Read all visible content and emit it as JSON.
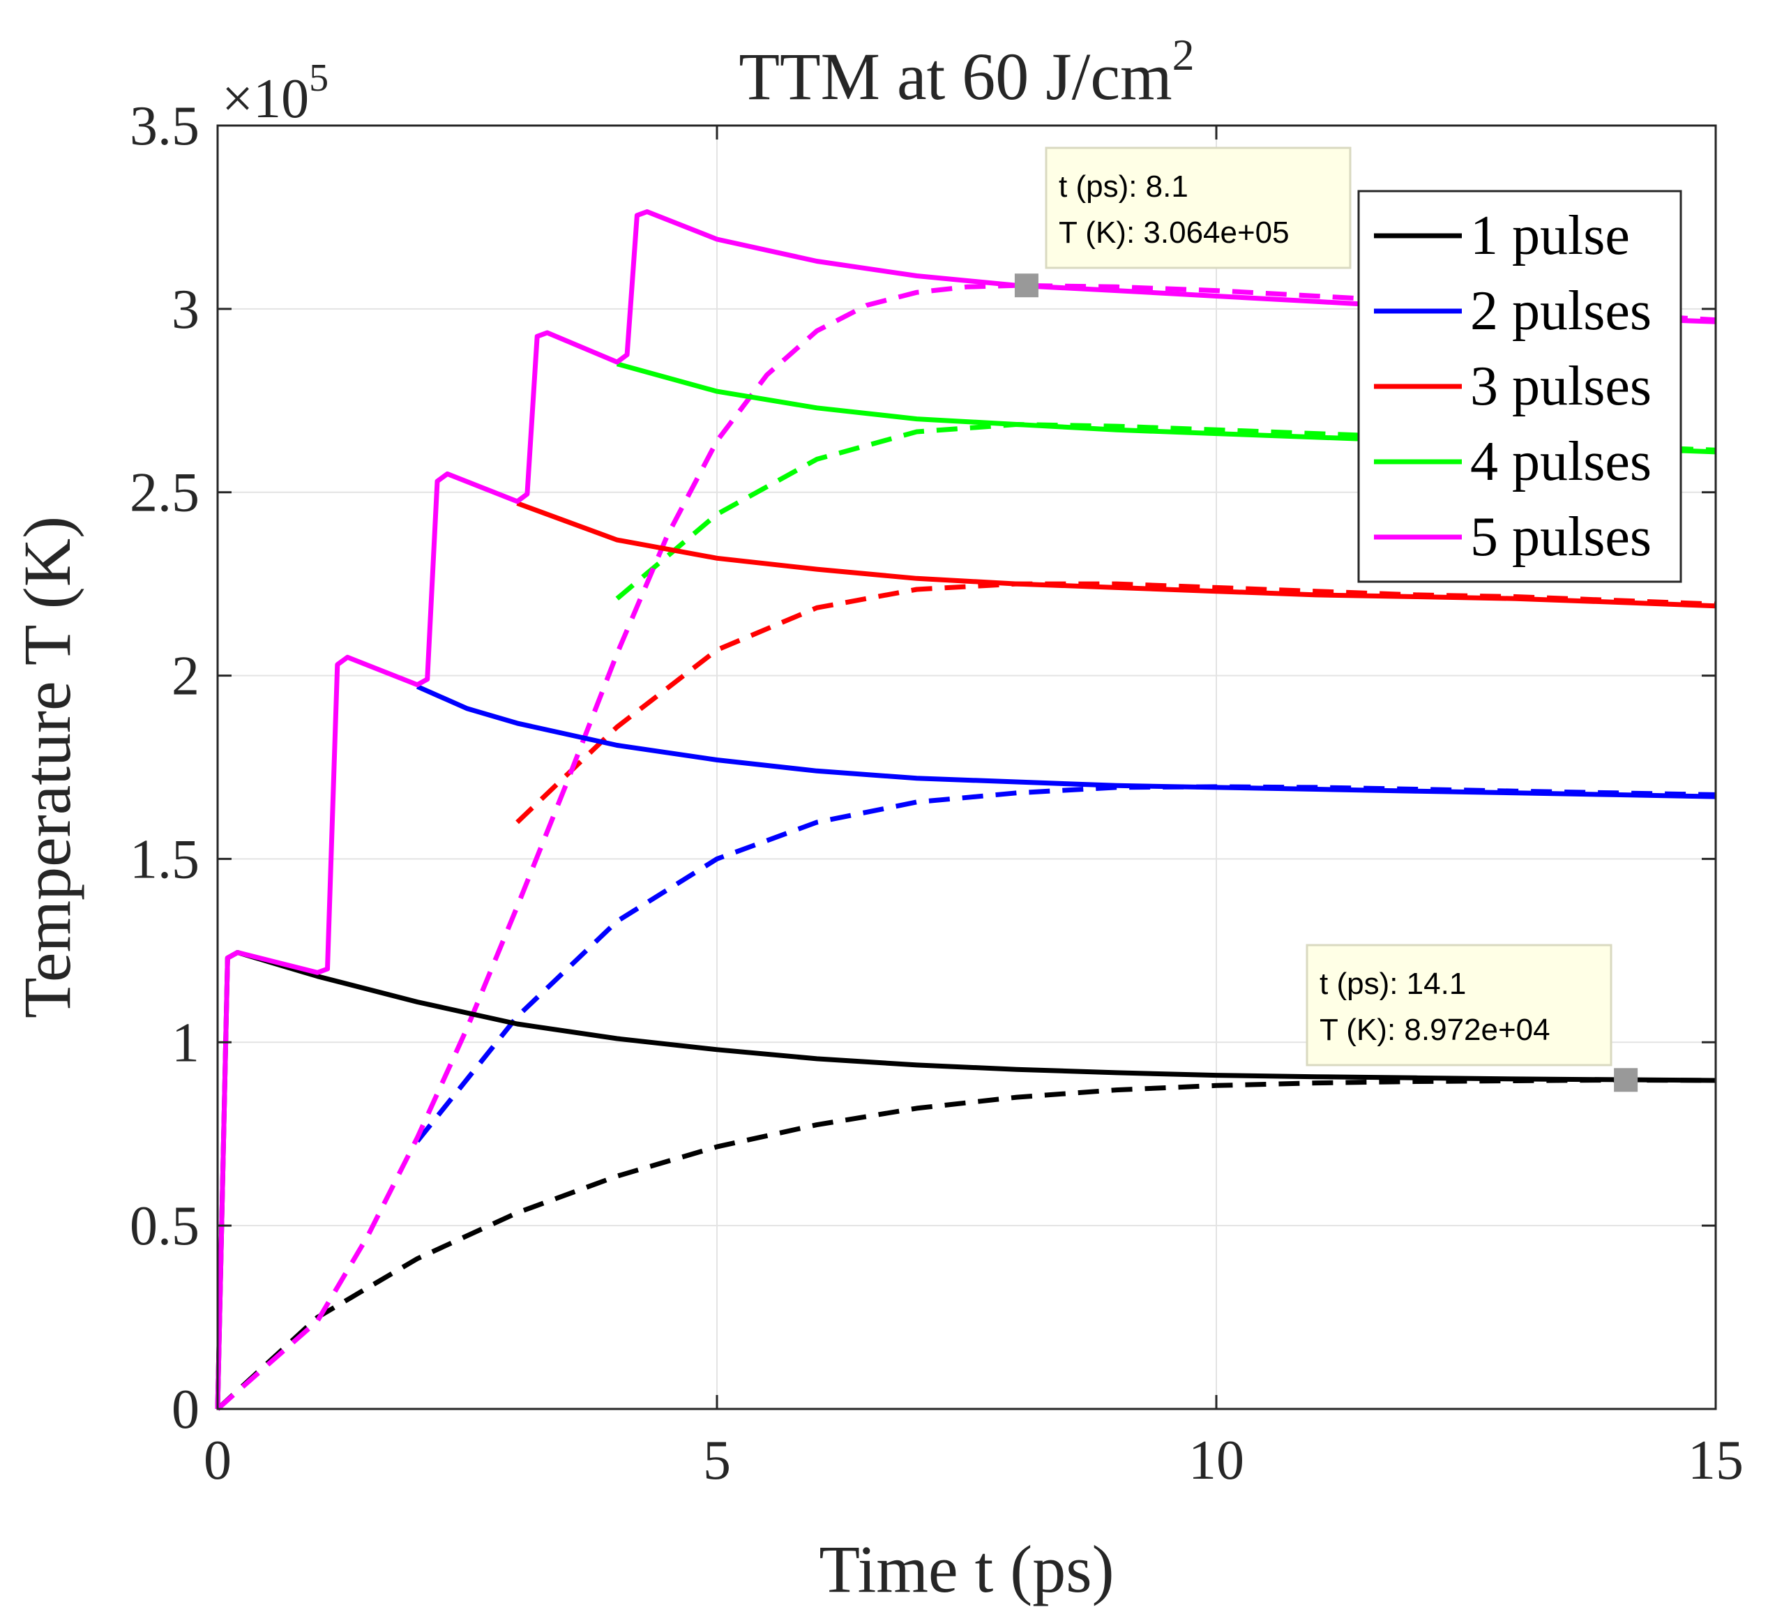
{
  "chart_data": {
    "type": "line",
    "title": "TTM at 60 J/cm",
    "title_superscript": "2",
    "xlabel": "Time t (ps)",
    "ylabel": "Temperature T (K)",
    "xlim": [
      0,
      15
    ],
    "ylim": [
      0,
      350000
    ],
    "xticks": [
      0,
      5,
      10,
      15
    ],
    "yticks": [
      0,
      50000,
      100000,
      150000,
      200000,
      250000,
      300000,
      350000
    ],
    "xtick_labels": [
      "0",
      "5",
      "10",
      "15"
    ],
    "ytick_labels": [
      "0",
      "0.5",
      "1",
      "1.5",
      "2",
      "2.5",
      "3",
      "3.5"
    ],
    "y_exponent_prefix": "×10",
    "y_exponent": "5",
    "grid": true,
    "legend_position": "top-right",
    "series": [
      {
        "name": "1 pulse",
        "color": "#000000",
        "solid": [
          [
            0,
            0
          ],
          [
            0.1,
            123000
          ],
          [
            0.2,
            124500
          ],
          [
            1,
            118000
          ],
          [
            2,
            111000
          ],
          [
            3,
            105000
          ],
          [
            4,
            101000
          ],
          [
            5,
            98000
          ],
          [
            6,
            95500
          ],
          [
            7,
            93800
          ],
          [
            8,
            92600
          ],
          [
            9,
            91700
          ],
          [
            10,
            91000
          ],
          [
            11,
            90600
          ],
          [
            12,
            90300
          ],
          [
            13,
            90000
          ],
          [
            14,
            89800
          ],
          [
            15,
            89600
          ]
        ],
        "dashed": [
          [
            0,
            0
          ],
          [
            1,
            25000
          ],
          [
            2,
            41000
          ],
          [
            3,
            53500
          ],
          [
            4,
            63500
          ],
          [
            5,
            71500
          ],
          [
            6,
            77500
          ],
          [
            7,
            82000
          ],
          [
            8,
            85000
          ],
          [
            9,
            87000
          ],
          [
            10,
            88200
          ],
          [
            11,
            88900
          ],
          [
            12,
            89300
          ],
          [
            13,
            89500
          ],
          [
            14,
            89700
          ],
          [
            15,
            89600
          ]
        ]
      },
      {
        "name": "2 pulses",
        "color": "#0000ff",
        "solid": [
          [
            2,
            197000
          ],
          [
            2.5,
            191000
          ],
          [
            3,
            187000
          ],
          [
            4,
            181000
          ],
          [
            5,
            177000
          ],
          [
            6,
            174000
          ],
          [
            7,
            172000
          ],
          [
            8,
            171000
          ],
          [
            9,
            170000
          ],
          [
            10,
            169500
          ],
          [
            11,
            169000
          ],
          [
            12,
            168500
          ],
          [
            13,
            168000
          ],
          [
            14,
            167500
          ],
          [
            15,
            167000
          ]
        ],
        "dashed": [
          [
            2,
            73000
          ],
          [
            3,
            107000
          ],
          [
            4,
            133000
          ],
          [
            5,
            150000
          ],
          [
            6,
            160000
          ],
          [
            7,
            165500
          ],
          [
            8,
            168000
          ],
          [
            9,
            169500
          ],
          [
            10,
            169700
          ],
          [
            11,
            169500
          ],
          [
            12,
            169000
          ],
          [
            13,
            168500
          ],
          [
            14,
            168000
          ],
          [
            15,
            167500
          ]
        ]
      },
      {
        "name": "3 pulses",
        "color": "#ff0000",
        "solid": [
          [
            3,
            247000
          ],
          [
            3.5,
            242000
          ],
          [
            4,
            237000
          ],
          [
            5,
            232000
          ],
          [
            6,
            229000
          ],
          [
            7,
            226500
          ],
          [
            8,
            225000
          ],
          [
            9,
            224000
          ],
          [
            10,
            223000
          ],
          [
            11,
            222000
          ],
          [
            12,
            221500
          ],
          [
            13,
            221000
          ],
          [
            14,
            220000
          ],
          [
            15,
            219000
          ]
        ],
        "dashed": [
          [
            3,
            160000
          ],
          [
            3.5,
            173000
          ],
          [
            4,
            186000
          ],
          [
            5,
            207000
          ],
          [
            6,
            218500
          ],
          [
            7,
            223500
          ],
          [
            8,
            225000
          ],
          [
            9,
            225000
          ],
          [
            10,
            224000
          ],
          [
            11,
            223000
          ],
          [
            12,
            222000
          ],
          [
            13,
            221500
          ],
          [
            14,
            220500
          ],
          [
            15,
            219500
          ]
        ]
      },
      {
        "name": "4 pulses",
        "color": "#00ff00",
        "solid": [
          [
            4,
            285000
          ],
          [
            5,
            277500
          ],
          [
            6,
            273000
          ],
          [
            7,
            270000
          ],
          [
            8,
            268500
          ],
          [
            9,
            267000
          ],
          [
            10,
            266000
          ],
          [
            11,
            265000
          ],
          [
            12,
            264000
          ],
          [
            13,
            263000
          ],
          [
            14,
            262000
          ],
          [
            15,
            261000
          ]
        ],
        "dashed": [
          [
            4,
            221000
          ],
          [
            5,
            244000
          ],
          [
            6,
            259000
          ],
          [
            7,
            266500
          ],
          [
            8,
            268500
          ],
          [
            9,
            268000
          ],
          [
            10,
            267000
          ],
          [
            11,
            266000
          ],
          [
            12,
            265000
          ],
          [
            13,
            264000
          ],
          [
            14,
            262500
          ],
          [
            15,
            261500
          ]
        ]
      },
      {
        "name": "5 pulses",
        "color": "#ff00ff",
        "solid": [
          [
            0,
            0
          ],
          [
            0.1,
            123000
          ],
          [
            0.2,
            124500
          ],
          [
            1,
            119000
          ],
          [
            1.1,
            120000
          ],
          [
            1.2,
            203000
          ],
          [
            1.3,
            205000
          ],
          [
            2,
            197500
          ],
          [
            2.1,
            199000
          ],
          [
            2.2,
            253000
          ],
          [
            2.3,
            255000
          ],
          [
            3,
            247500
          ],
          [
            3.1,
            249500
          ],
          [
            3.2,
            292500
          ],
          [
            3.3,
            293500
          ],
          [
            4,
            285500
          ],
          [
            4.1,
            287500
          ],
          [
            4.2,
            325500
          ],
          [
            4.3,
            326500
          ],
          [
            5,
            319000
          ],
          [
            6,
            313000
          ],
          [
            7,
            309000
          ],
          [
            8,
            306400
          ],
          [
            9,
            305000
          ],
          [
            10,
            303500
          ],
          [
            11,
            302000
          ],
          [
            12,
            300500
          ],
          [
            13,
            299000
          ],
          [
            14,
            297500
          ],
          [
            15,
            296500
          ]
        ],
        "dashed": [
          [
            0,
            0
          ],
          [
            1,
            24000
          ],
          [
            1.5,
            47000
          ],
          [
            2,
            74000
          ],
          [
            2.5,
            104000
          ],
          [
            3,
            137000
          ],
          [
            3.5,
            171000
          ],
          [
            4,
            206000
          ],
          [
            4.5,
            238000
          ],
          [
            5,
            264000
          ],
          [
            5.5,
            282000
          ],
          [
            6,
            294000
          ],
          [
            6.5,
            301000
          ],
          [
            7,
            304500
          ],
          [
            7.5,
            306000
          ],
          [
            8,
            306400
          ],
          [
            9,
            306000
          ],
          [
            10,
            305000
          ],
          [
            11,
            303500
          ],
          [
            12,
            302000
          ],
          [
            13,
            300000
          ],
          [
            14,
            298500
          ],
          [
            15,
            297000
          ]
        ]
      }
    ],
    "data_tips": [
      {
        "x": 8.1,
        "y": 306400,
        "line1": "t (ps): 8.1",
        "line2": "T (K): 3.064e+05"
      },
      {
        "x": 14.1,
        "y": 89720,
        "line1": "t (ps): 14.1",
        "line2": "T (K): 8.972e+04"
      }
    ]
  }
}
